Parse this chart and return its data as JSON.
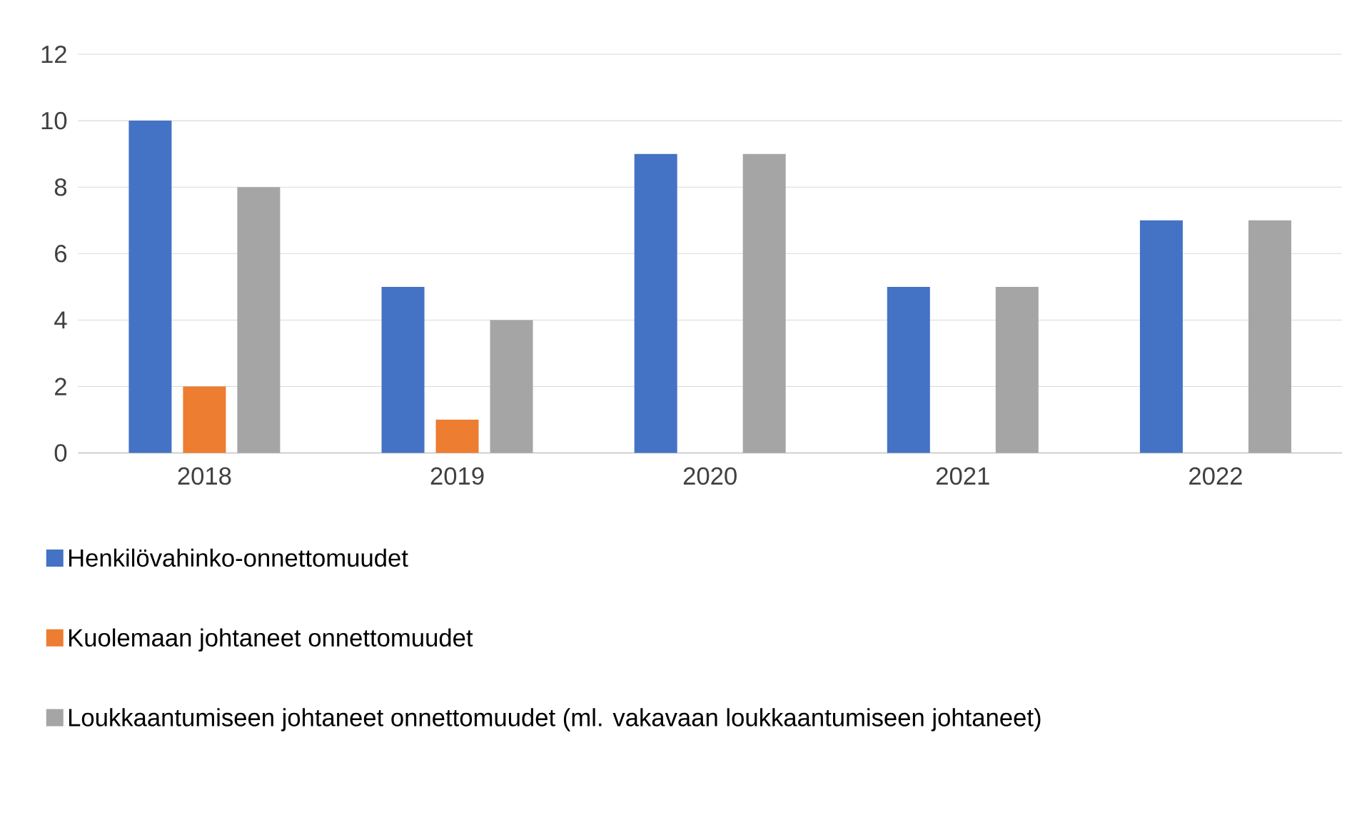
{
  "chart_data": {
    "type": "bar",
    "categories": [
      "2018",
      "2019",
      "2020",
      "2021",
      "2022"
    ],
    "series": [
      {
        "name": "Henkilövahinko-onnettomuudet",
        "color": "#4472c4",
        "values": [
          10,
          5,
          9,
          5,
          7
        ]
      },
      {
        "name": "Kuolemaan johtaneet onnettomuudet",
        "color": "#ed7d31",
        "values": [
          2,
          1,
          0,
          0,
          0
        ]
      },
      {
        "name": "Loukkaantumiseen johtaneet onnettomuudet (ml. vakavaan loukkaantumiseen johtaneet)",
        "color": "#a5a5a5",
        "values": [
          8,
          4,
          9,
          5,
          7
        ]
      }
    ],
    "ylim": [
      0,
      12
    ],
    "yticks": [
      0,
      2,
      4,
      6,
      8,
      10,
      12
    ],
    "grid": "y",
    "legend": "bottom"
  }
}
